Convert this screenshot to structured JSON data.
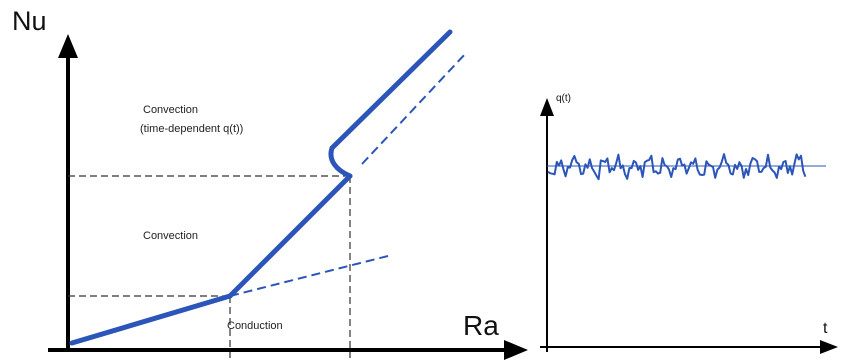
{
  "left_panel": {
    "y_label": "Nu",
    "x_label": "Ra",
    "region_top_line1": "Convection",
    "region_top_line2": "(time-dependent q(t))",
    "region_mid": "Convection",
    "region_low": "Conduction"
  },
  "right_panel": {
    "y_label": "q(t)",
    "x_label": "t"
  },
  "colors": {
    "curve": "#2b55b8",
    "axis": "#000000",
    "guide": "#333333"
  }
}
